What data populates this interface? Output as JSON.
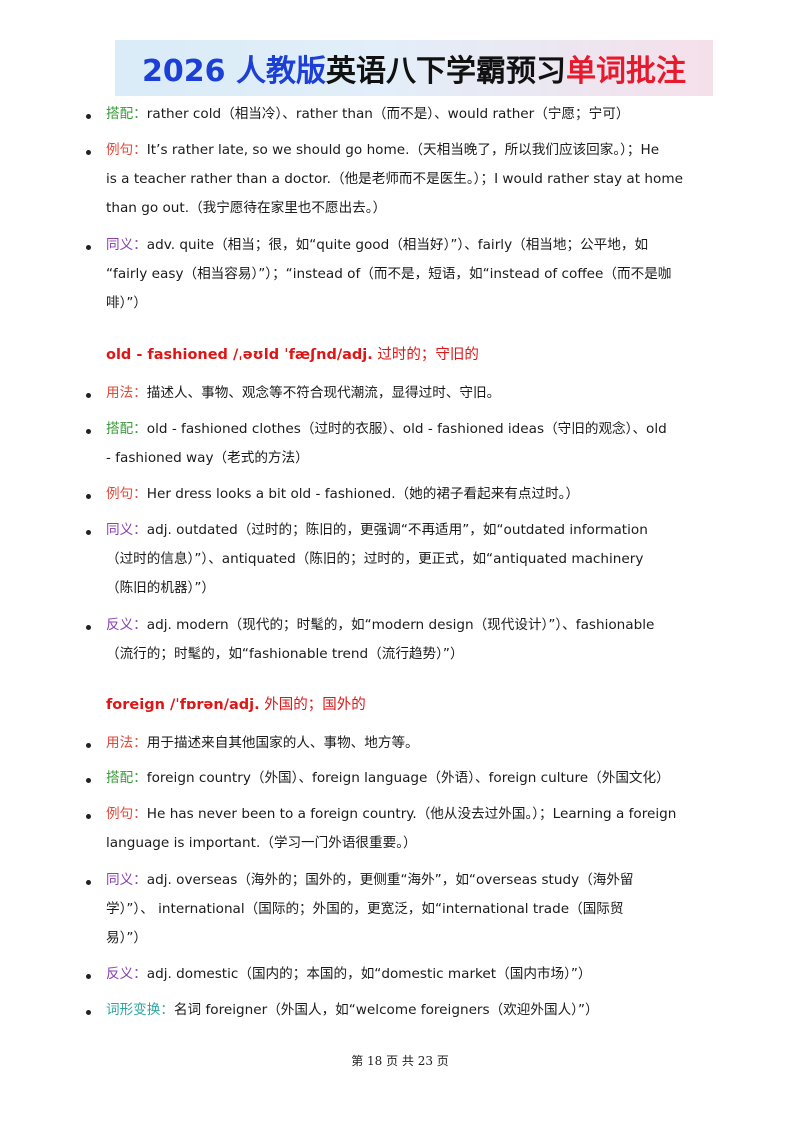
{
  "banner": {
    "part1": "2026 人教版",
    "part2": "英语八下学霸预习",
    "part3": "单词批注"
  },
  "block1": {
    "collocation_label": "搭配：",
    "collocation": "rather cold（相当冷）、rather than（而不是）、would rather（宁愿；宁可）",
    "example_label": "例句：",
    "example_lines": [
      "It’s rather late, so we should go home.（天相当晚了，所以我们应该回家。）；He",
      "is a teacher rather than a doctor.（他是老师而不是医生。）；I would rather stay at home",
      "than go out.（我宁愿待在家里也不愿出去。）"
    ],
    "synonym_label": "同义：",
    "synonym_lines": [
      "adv. quite（相当；很，如“quite good（相当好）”）、fairly（相当地；公平地，如",
      "“fairly easy（相当容易）”）；“instead of（而不是，短语，如“instead of coffee（而不是咖",
      "啡）”）"
    ]
  },
  "word2": {
    "headword": "old - fashioned /ˌəʊld ˈfæʃnd/adj.",
    "meaning": "过时的；守旧的",
    "usage_label": "用法：",
    "usage": "描述人、事物、观念等不符合现代潮流，显得过时、守旧。",
    "collocation_label": "搭配：",
    "collocation_lines": [
      "old - fashioned clothes（过时的衣服）、old - fashioned ideas（守旧的观念）、old",
      "- fashioned way（老式的方法）"
    ],
    "example_label": "例句：",
    "example": "Her dress looks a bit old - fashioned.（她的裙子看起来有点过时。）",
    "synonym_label": "同义：",
    "synonym_lines": [
      "adj. outdated（过时的；陈旧的，更强调“不再适用”，如“outdated information",
      "（过时的信息）”）、antiquated（陈旧的；过时的，更正式，如“antiquated machinery",
      "（陈旧的机器）”）"
    ],
    "antonym_label": "反义：",
    "antonym_lines": [
      "adj. modern（现代的；时髦的，如“modern design（现代设计）”）、fashionable",
      "（流行的；时髦的，如“fashionable trend（流行趋势）”）"
    ]
  },
  "word3": {
    "headword": "foreign /ˈfɒrən/adj.",
    "meaning": "外国的；国外的",
    "usage_label": "用法：",
    "usage": "用于描述来自其他国家的人、事物、地方等。",
    "collocation_label": "搭配：",
    "collocation": "foreign country（外国）、foreign language（外语）、foreign culture（外国文化）",
    "example_label": "例句：",
    "example_lines": [
      "He has never been to a foreign country.（他从没去过外国。）；Learning a foreign",
      "language is important.（学习一门外语很重要。）"
    ],
    "synonym_label": "同义：",
    "synonym_lines": [
      "adj. overseas（海外的；国外的，更侧重“海外”，如“overseas study（海外留",
      "学）”）、 international（国际的；外国的，更宽泛，如“international trade（国际贸",
      "易）”）"
    ],
    "antonym_label": "反义：",
    "antonym": "adj. domestic（国内的；本国的，如“domestic market（国内市场）”）",
    "derivation_label": "词形变换：",
    "derivation": "名词 foreigner（外国人，如“welcome foreigners（欢迎外国人）”）"
  },
  "footer": "第 18 页 共 23 页"
}
